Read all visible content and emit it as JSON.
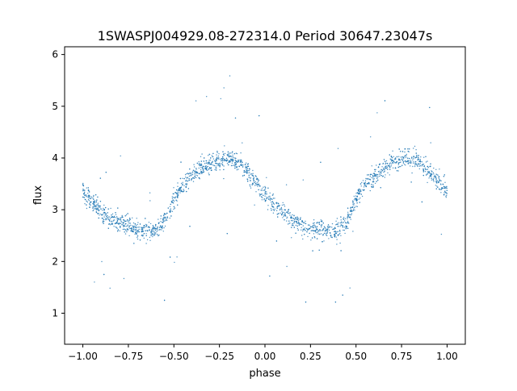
{
  "chart_data": {
    "type": "scatter",
    "title": "1SWASPJ004929.08-272314.0 Period 30647.23047s",
    "xlabel": "phase",
    "ylabel": "flux",
    "xlim": [
      -1.1,
      1.1
    ],
    "ylim": [
      0.4,
      6.15
    ],
    "x_ticks": [
      -1.0,
      -0.75,
      -0.5,
      -0.25,
      0.0,
      0.25,
      0.5,
      0.75,
      1.0
    ],
    "x_tick_labels": [
      "−1.00",
      "−0.75",
      "−0.50",
      "−0.25",
      "0.00",
      "0.25",
      "0.50",
      "0.75",
      "1.00"
    ],
    "y_ticks": [
      1,
      2,
      3,
      4,
      5,
      6
    ],
    "y_tick_labels": [
      "1",
      "2",
      "3",
      "4",
      "5",
      "6"
    ],
    "grid": false,
    "legend": "none",
    "point_color": "#1f77b4",
    "series": [
      {
        "x": [
          -1.0,
          -0.95,
          -0.9,
          -0.85,
          -0.8,
          -0.75,
          -0.7,
          -0.65,
          -0.6,
          -0.55,
          -0.5,
          -0.45,
          -0.4,
          -0.35,
          -0.3,
          -0.25,
          -0.2,
          -0.15,
          -0.1,
          -0.05,
          0.0,
          0.05,
          0.1,
          0.15,
          0.2,
          0.25,
          0.3,
          0.35,
          0.4,
          0.45,
          0.5,
          0.55,
          0.6,
          0.65,
          0.7,
          0.75,
          0.8,
          0.85,
          0.9,
          0.95,
          1.0
        ],
        "y": [
          3.35,
          3.15,
          3.0,
          2.85,
          2.75,
          2.68,
          2.62,
          2.6,
          2.62,
          2.8,
          3.2,
          3.5,
          3.65,
          3.8,
          3.9,
          3.97,
          4.0,
          3.92,
          3.75,
          3.5,
          3.3,
          3.1,
          2.95,
          2.8,
          2.7,
          2.65,
          2.6,
          2.58,
          2.6,
          2.8,
          3.2,
          3.5,
          3.65,
          3.8,
          3.9,
          3.97,
          4.0,
          3.92,
          3.75,
          3.55,
          3.35
        ]
      }
    ]
  }
}
